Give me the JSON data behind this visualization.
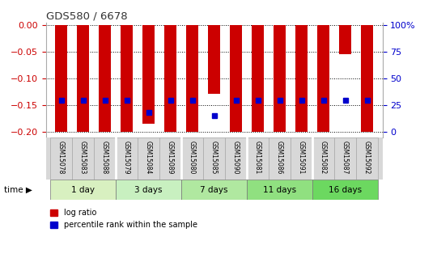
{
  "title": "GDS580 / 6678",
  "samples": [
    "GSM15078",
    "GSM15083",
    "GSM15088",
    "GSM15079",
    "GSM15084",
    "GSM15089",
    "GSM15080",
    "GSM15085",
    "GSM15090",
    "GSM15081",
    "GSM15086",
    "GSM15091",
    "GSM15082",
    "GSM15087",
    "GSM15092"
  ],
  "log_ratio": [
    -0.2,
    -0.2,
    -0.2,
    -0.2,
    -0.185,
    -0.2,
    -0.2,
    -0.128,
    -0.2,
    -0.2,
    -0.2,
    -0.2,
    -0.2,
    -0.055,
    -0.2
  ],
  "pct_values": [
    30,
    30,
    30,
    30,
    18,
    30,
    30,
    15,
    30,
    30,
    30,
    30,
    30,
    30,
    30
  ],
  "groups": [
    {
      "label": "1 day",
      "start": 0,
      "end": 2,
      "color": "#d8f0c0"
    },
    {
      "label": "3 days",
      "start": 3,
      "end": 5,
      "color": "#c8f0c0"
    },
    {
      "label": "7 days",
      "start": 6,
      "end": 8,
      "color": "#b0e8a0"
    },
    {
      "label": "11 days",
      "start": 9,
      "end": 11,
      "color": "#90e080"
    },
    {
      "label": "16 days",
      "start": 12,
      "end": 14,
      "color": "#6cd860"
    }
  ],
  "ylim": [
    -0.21,
    0.005
  ],
  "yticks": [
    0,
    -0.05,
    -0.1,
    -0.15,
    -0.2
  ],
  "right_ytick_labels": [
    "100%",
    "75",
    "50",
    "25",
    "0"
  ],
  "right_ytick_pos": [
    0.0,
    -0.05,
    -0.1,
    -0.15,
    -0.2
  ],
  "bar_color": "#cc0000",
  "dot_color": "#0000cc",
  "bar_width": 0.55,
  "dot_size": 22,
  "background_color": "#ffffff",
  "left_tick_color": "#cc0000",
  "right_tick_color": "#0000cc",
  "title_color": "#333333",
  "xlab_bg": "#d8d8d8",
  "xlab_border": "#aaaaaa"
}
